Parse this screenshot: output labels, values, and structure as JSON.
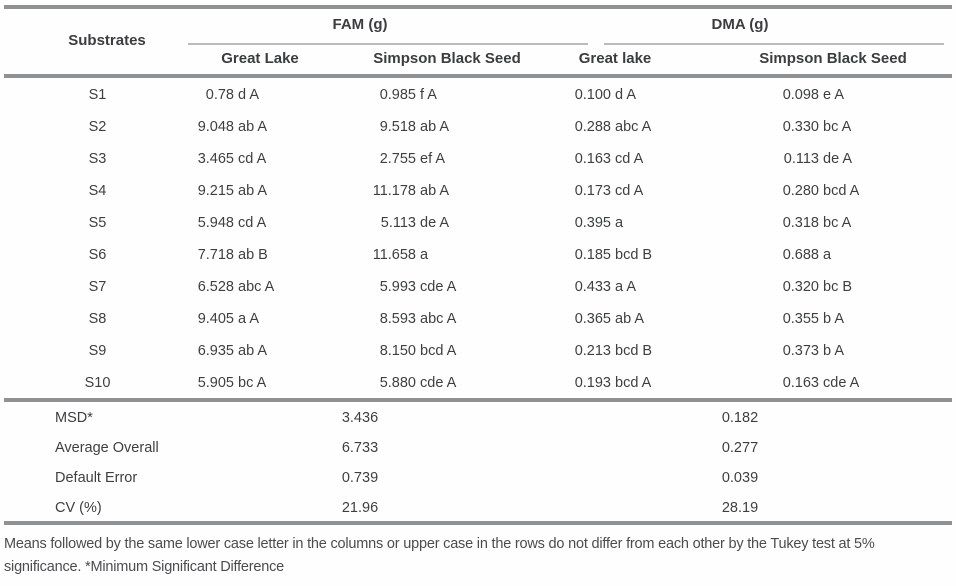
{
  "table": {
    "substrates_header": "Substrates",
    "col_groups": [
      {
        "label": "FAM (g)"
      },
      {
        "label": "DMA (g)"
      }
    ],
    "sub_headers": [
      "Great Lake",
      "Simpson Black Seed",
      "Great lake",
      "Simpson Black Seed"
    ],
    "rows": [
      {
        "substrate": "S1",
        "values": [
          "0.78 d A",
          "0.985 f A",
          "0.100 d A",
          "0.098 e A"
        ]
      },
      {
        "substrate": "S2",
        "values": [
          "9.048 ab A",
          "9.518 ab A",
          "0.288 abc A",
          "0.330 bc A"
        ]
      },
      {
        "substrate": "S3",
        "values": [
          "3.465 cd A",
          "2.755 ef A",
          "0.163 cd A",
          "0.113 de A"
        ]
      },
      {
        "substrate": "S4",
        "values": [
          "9.215 ab A",
          "11.178 ab A",
          "0.173 cd A",
          "0.280 bcd A"
        ]
      },
      {
        "substrate": "S5",
        "values": [
          "5.948 cd A",
          "5.113 de A",
          "0.395 a",
          "0.318 bc A"
        ]
      },
      {
        "substrate": "S6",
        "values": [
          "7.718 ab B",
          "11.658 a",
          "0.185 bcd B",
          "0.688 a"
        ]
      },
      {
        "substrate": "S7",
        "values": [
          "6.528 abc A",
          "5.993 cde A",
          "0.433 a A",
          "0.320 bc B"
        ]
      },
      {
        "substrate": "S8",
        "values": [
          "9.405 a A",
          "8.593 abc A",
          "0.365 ab A",
          "0.355 b A"
        ]
      },
      {
        "substrate": "S9",
        "values": [
          "6.935 ab A",
          "8.150 bcd A",
          "0.213 bcd B",
          "0.373 b A"
        ]
      },
      {
        "substrate": "S10",
        "values": [
          "5.905 bc A",
          "5.880 cde A",
          "0.193 bcd A",
          "0.163 cde A"
        ]
      }
    ],
    "summary_rows": [
      {
        "label": "MSD*",
        "fam": "3.436",
        "dma": "0.182"
      },
      {
        "label": "Average Overall",
        "fam": "6.733",
        "dma": "0.277"
      },
      {
        "label": "Default Error",
        "fam": "0.739",
        "dma": "0.039"
      },
      {
        "label": "CV (%)",
        "fam": "21.96",
        "dma": "28.19"
      }
    ]
  },
  "footer": {
    "line1": "Means followed by the same lower case letter in the columns or upper case in the rows do not differ from each other by the Tukey test at 5%",
    "line2": "significance. *Minimum Significant Difference"
  }
}
